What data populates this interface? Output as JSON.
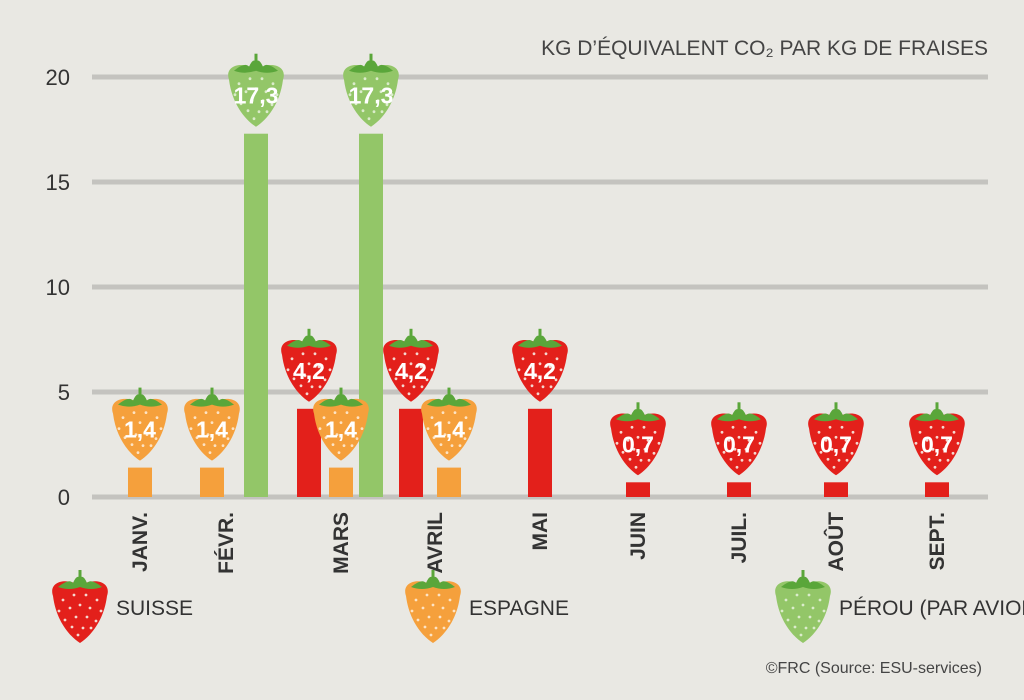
{
  "chart_data": {
    "type": "bar",
    "unit_label": "KG D’ÉQUIVALENT CO₂ PAR KG DE FRAISES",
    "categories": [
      "JANV.",
      "FÉVR.",
      "MARS",
      "AVRIL",
      "MAI",
      "JUIN",
      "JUIL.",
      "AOÛT",
      "SEPT."
    ],
    "series": [
      {
        "name": "SUISSE",
        "color": "#e3201b",
        "values": [
          null,
          null,
          4.2,
          4.2,
          4.2,
          0.7,
          0.7,
          0.7,
          0.7
        ],
        "labels": [
          null,
          null,
          "4,2",
          "4,2",
          "4,2",
          "0,7",
          "0,7",
          "0,7",
          "0,7"
        ]
      },
      {
        "name": "ESPAGNE",
        "color": "#f5a03c",
        "values": [
          1.4,
          1.4,
          1.4,
          1.4,
          null,
          null,
          null,
          null,
          null
        ],
        "labels": [
          "1,4",
          "1,4",
          "1,4",
          "1,4",
          null,
          null,
          null,
          null,
          null
        ]
      },
      {
        "name": "PÉROU (PAR AVION)",
        "color": "#93c668",
        "values": [
          null,
          17.3,
          17.3,
          null,
          null,
          null,
          null,
          null,
          null
        ],
        "labels": [
          null,
          "17,3",
          "17,3",
          null,
          null,
          null,
          null,
          null,
          null
        ]
      }
    ],
    "y_ticks": [
      "0",
      "5",
      "10",
      "15",
      "20"
    ],
    "ylim": [
      0,
      20
    ],
    "grid": true,
    "legend_position": "bottom",
    "credit": "©FRC (Source: ESU-services)"
  }
}
